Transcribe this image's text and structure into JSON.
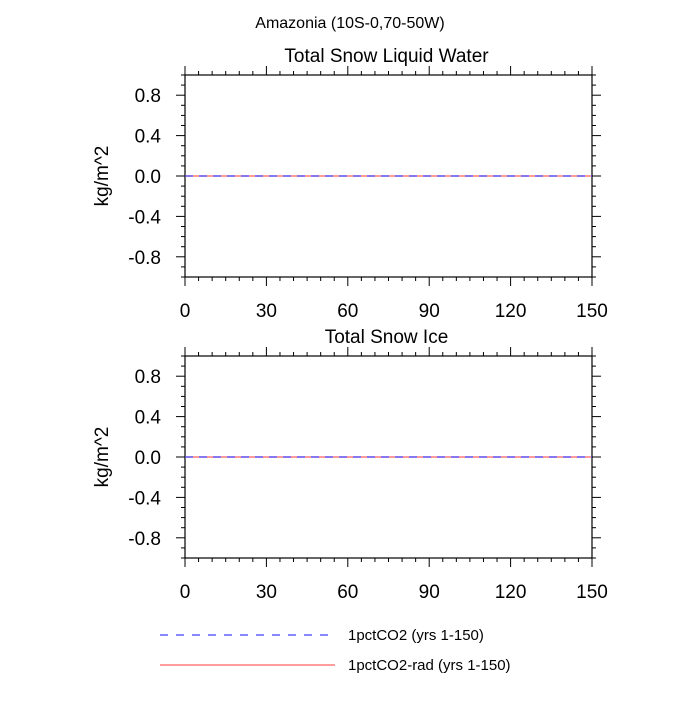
{
  "figure": {
    "title": "Amazonia (10S-0,70-50W)"
  },
  "chart_data": [
    {
      "type": "line",
      "title": "Total Snow Liquid Water",
      "xlabel": "",
      "ylabel": "kg/m^2",
      "xlim": [
        0,
        150
      ],
      "ylim": [
        -1,
        1
      ],
      "x_ticks": [
        0,
        30,
        60,
        90,
        120,
        150
      ],
      "y_ticks": [
        -0.8,
        -0.4,
        0.0,
        0.4,
        0.8
      ],
      "y_tick_labels": [
        "-0.8",
        "-0.4",
        "0.0",
        "0.4",
        "0.8"
      ],
      "grid": false,
      "series": [
        {
          "name": "1pctCO2 (yrs 1-150)",
          "x": [
            0,
            150
          ],
          "y": [
            0,
            0
          ],
          "color": "#4040ff",
          "style": "dashed"
        },
        {
          "name": "1pctCO2-rad (yrs 1-150)",
          "x": [
            0,
            150
          ],
          "y": [
            0,
            0
          ],
          "color": "#ff6060",
          "style": "solid"
        }
      ]
    },
    {
      "type": "line",
      "title": "Total Snow Ice",
      "xlabel": "",
      "ylabel": "kg/m^2",
      "xlim": [
        0,
        150
      ],
      "ylim": [
        -1,
        1
      ],
      "x_ticks": [
        0,
        30,
        60,
        90,
        120,
        150
      ],
      "y_ticks": [
        -0.8,
        -0.4,
        0.0,
        0.4,
        0.8
      ],
      "y_tick_labels": [
        "-0.8",
        "-0.4",
        "0.0",
        "0.4",
        "0.8"
      ],
      "grid": false,
      "series": [
        {
          "name": "1pctCO2 (yrs 1-150)",
          "x": [
            0,
            150
          ],
          "y": [
            0,
            0
          ],
          "color": "#4040ff",
          "style": "dashed"
        },
        {
          "name": "1pctCO2-rad (yrs 1-150)",
          "x": [
            0,
            150
          ],
          "y": [
            0,
            0
          ],
          "color": "#ff6060",
          "style": "solid"
        }
      ]
    }
  ],
  "legend": {
    "placement": "bottom",
    "items": [
      {
        "label": "1pctCO2 (yrs 1-150)",
        "color": "#4040ff",
        "style": "dashed"
      },
      {
        "label": "1pctCO2-rad (yrs 1-150)",
        "color": "#ff6060",
        "style": "solid"
      }
    ]
  }
}
